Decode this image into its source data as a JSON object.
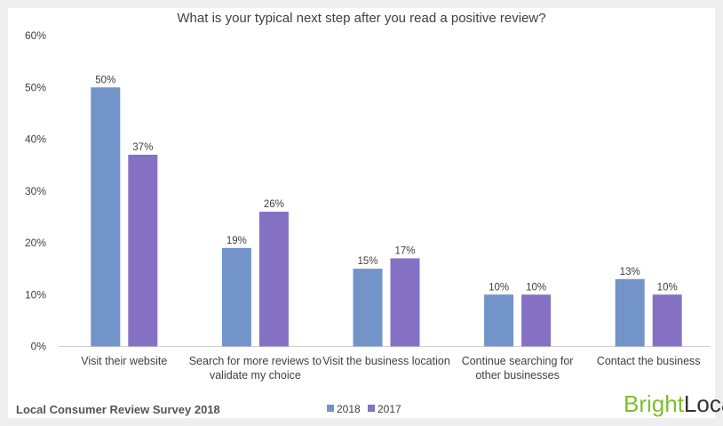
{
  "chart_data": {
    "type": "bar",
    "title": "What is your typical next step after you read a positive review?",
    "categories": [
      [
        "Visit their website"
      ],
      [
        "Search for more reviews to",
        "validate my choice"
      ],
      [
        "Visit the business location"
      ],
      [
        "Continue searching for",
        "other businesses"
      ],
      [
        "Contact the business"
      ]
    ],
    "series": [
      {
        "name": "2018",
        "values": [
          50,
          19,
          15,
          10,
          13
        ],
        "color": "#7394c8",
        "labels": [
          "50%",
          "19%",
          "15%",
          "10%",
          "13%"
        ]
      },
      {
        "name": "2017",
        "values": [
          37,
          26,
          17,
          10,
          10
        ],
        "color": "#8571c4",
        "labels": [
          "37%",
          "26%",
          "17%",
          "10%",
          "10%"
        ]
      }
    ],
    "ylim": [
      0,
      60
    ],
    "yticks": [
      "0%",
      "10%",
      "20%",
      "30%",
      "40%",
      "50%",
      "60%"
    ],
    "grid": false,
    "legend_position": "bottom"
  },
  "footer": {
    "source": "Local Consumer Review Survey 2018",
    "logo": {
      "part1": "Bright",
      "part2": "Local"
    }
  },
  "colors": {
    "bar_2018": "#7394c8",
    "bar_2017": "#8571c4",
    "logo_green": "#7dbf2e"
  }
}
